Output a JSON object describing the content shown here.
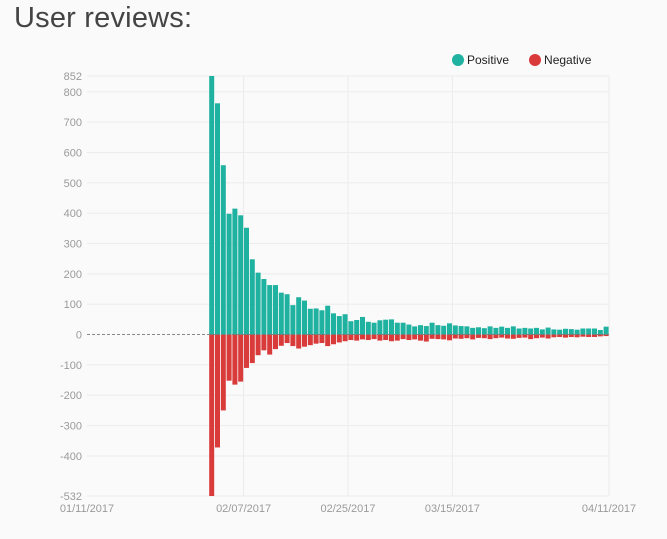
{
  "page": {
    "title": "User reviews:"
  },
  "legend": [
    {
      "label": "Positive",
      "color": "#20b2a0"
    },
    {
      "label": "Negative",
      "color": "#d93a3a"
    }
  ],
  "chart_data": {
    "type": "bar",
    "stacked_diverging": true,
    "x_start": "01/11/2017",
    "x_end": "04/11/2017",
    "ylim": [
      -532,
      852
    ],
    "grid": true,
    "legend_position": "top-right",
    "y_ticks": [
      852,
      800,
      700,
      600,
      500,
      400,
      300,
      200,
      100,
      0,
      -100,
      -200,
      -300,
      -400,
      -532
    ],
    "x_ticks": [
      "01/11/2017",
      "02/07/2017",
      "02/25/2017",
      "03/15/2017",
      "04/11/2017"
    ],
    "first_bar_date": "02/01/2017",
    "series": [
      {
        "name": "Positive",
        "color": "#20b2a0",
        "values": [
          852,
          762,
          558,
          398,
          415,
          393,
          352,
          248,
          204,
          183,
          163,
          163,
          138,
          133,
          97,
          123,
          112,
          85,
          86,
          80,
          95,
          70,
          61,
          67,
          44,
          48,
          58,
          42,
          39,
          47,
          49,
          50,
          39,
          39,
          33,
          27,
          31,
          28,
          39,
          31,
          29,
          37,
          30,
          28,
          27,
          22,
          24,
          21,
          27,
          22,
          26,
          22,
          27,
          20,
          22,
          20,
          22,
          17,
          23,
          17,
          16,
          19,
          18,
          16,
          20,
          20,
          20,
          15,
          26
        ]
      },
      {
        "name": "Negative",
        "color": "#d93a3a",
        "values": [
          -532,
          -372,
          -250,
          -152,
          -165,
          -155,
          -110,
          -94,
          -68,
          -52,
          -66,
          -48,
          -37,
          -28,
          -38,
          -46,
          -40,
          -35,
          -30,
          -28,
          -38,
          -32,
          -26,
          -22,
          -18,
          -20,
          -16,
          -18,
          -15,
          -20,
          -18,
          -22,
          -20,
          -15,
          -18,
          -16,
          -20,
          -23,
          -14,
          -15,
          -16,
          -19,
          -13,
          -14,
          -12,
          -16,
          -11,
          -12,
          -15,
          -12,
          -10,
          -13,
          -14,
          -11,
          -10,
          -15,
          -12,
          -10,
          -13,
          -9,
          -8,
          -10,
          -8,
          -9,
          -7,
          -8,
          -8,
          -6,
          -5
        ]
      }
    ]
  }
}
